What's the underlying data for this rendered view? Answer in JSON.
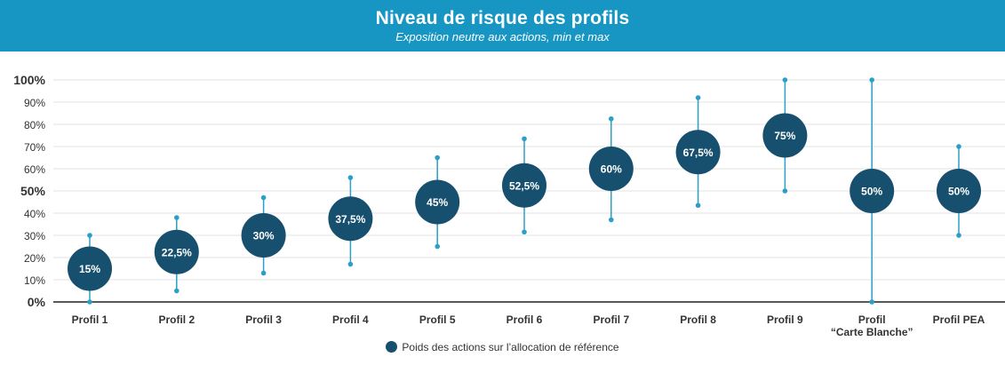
{
  "header": {
    "title": "Niveau de risque des profils",
    "subtitle": "Exposition neutre aux actions, min et max"
  },
  "colors": {
    "header_bg": "#1796c3",
    "bubble": "#17506e",
    "whisker": "#2b9fc8",
    "grid": "#e3e3e3",
    "axis": "#222222"
  },
  "chart_data": {
    "type": "scatter",
    "title": "Niveau de risque des profils",
    "subtitle": "Exposition neutre aux actions, min et max",
    "categories": [
      "Profil 1",
      "Profil 2",
      "Profil 3",
      "Profil 4",
      "Profil 5",
      "Profil 6",
      "Profil 7",
      "Profil 8",
      "Profil 9",
      "Profil\n“Carte Blanche”",
      "Profil PEA"
    ],
    "series": [
      {
        "name": "Poids des actions sur l’allocation de référence",
        "values": [
          15,
          22.5,
          30,
          37.5,
          45,
          52.5,
          60,
          67.5,
          75,
          50,
          50
        ],
        "labels": [
          "15%",
          "22,5%",
          "30%",
          "37,5%",
          "45%",
          "52,5%",
          "60%",
          "67,5%",
          "75%",
          "50%",
          "50%"
        ]
      }
    ],
    "min": [
      0,
      5,
      13,
      17,
      25,
      31.5,
      37,
      43.5,
      50,
      0,
      30
    ],
    "max": [
      30,
      38,
      47,
      56,
      65,
      73.5,
      82.5,
      92,
      100,
      100,
      70
    ],
    "ylim": [
      0,
      100
    ],
    "yticks": [
      "0%",
      "10%",
      "20%",
      "30%",
      "40%",
      "50%",
      "60%",
      "70%",
      "80%",
      "90%",
      "100%"
    ],
    "bold_yticks": [
      "0%",
      "50%",
      "100%"
    ],
    "grid": true,
    "legend": "bottom"
  }
}
